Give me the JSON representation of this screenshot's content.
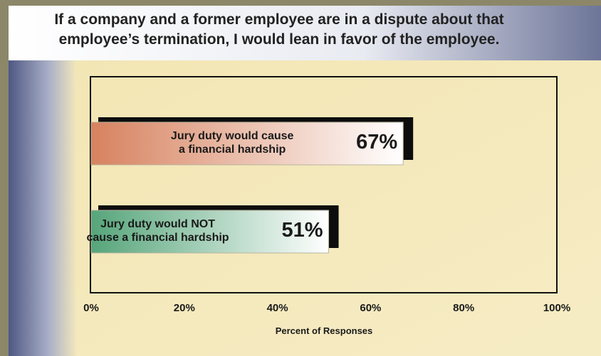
{
  "chart_data": {
    "type": "hbar",
    "title": "If a company and a former employee are in a dispute about that\nemployee’s termination, I would lean in favor of the employee.",
    "categories": [
      "Jury duty would cause\na financial hardship",
      "Jury duty would NOT\ncause a financial hardship"
    ],
    "values": [
      67,
      51
    ],
    "value_labels": [
      "67%",
      "51%"
    ],
    "colors": [
      "#d7825f",
      "#56a57a"
    ],
    "xlim": [
      0,
      100
    ],
    "xticks": [
      {
        "value": 0,
        "label": "0%"
      },
      {
        "value": 20,
        "label": "20%"
      },
      {
        "value": 40,
        "label": "40%"
      },
      {
        "value": 60,
        "label": "60%"
      },
      {
        "value": 80,
        "label": "80%"
      },
      {
        "value": 100,
        "label": "100%"
      }
    ],
    "xlabel": "Percent of Responses",
    "grid": false
  }
}
